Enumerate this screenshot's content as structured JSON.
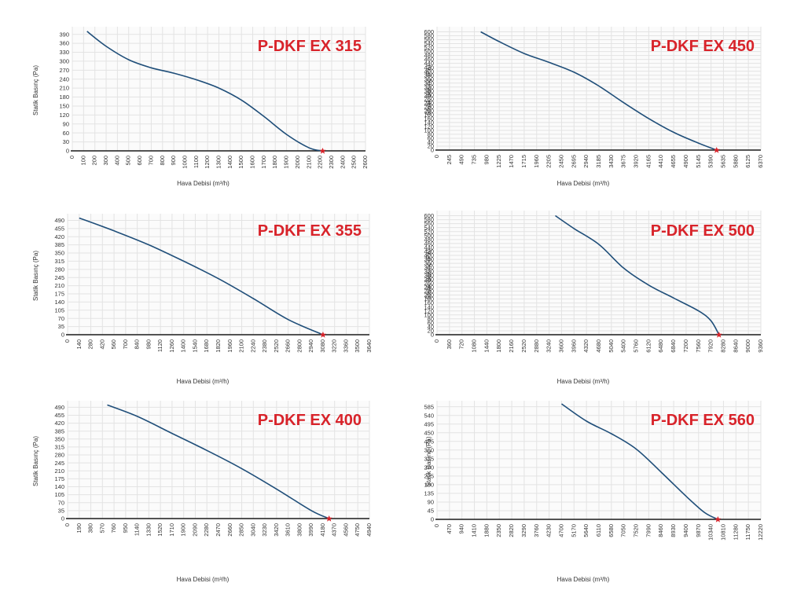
{
  "colors": {
    "curve": "#1f4e79",
    "baseline": "#1b1b1b",
    "marker": "#d8232a",
    "title": "#d8232a"
  },
  "chart_data": [
    {
      "type": "line",
      "title": "P-DKF EX 315",
      "xlabel": "Hava Debisi (m³/h)",
      "ylabel": "Statik Basınç (Pa)",
      "x_ticks": [
        0,
        100,
        200,
        300,
        400,
        500,
        600,
        700,
        800,
        900,
        1000,
        1100,
        1200,
        1300,
        1400,
        1500,
        1600,
        1700,
        1800,
        1900,
        2000,
        2100,
        2200,
        2300,
        2400,
        2500,
        2600
      ],
      "y_ticks": [
        0,
        30,
        60,
        90,
        120,
        150,
        180,
        210,
        240,
        270,
        300,
        330,
        360,
        390
      ],
      "xlim": [
        0,
        2600
      ],
      "ylim": [
        0,
        405
      ],
      "grid": true,
      "series": [
        {
          "x": [
            130,
            300,
            500,
            700,
            900,
            1100,
            1300,
            1500,
            1700,
            1900,
            2100,
            2220
          ],
          "y": [
            400,
            350,
            305,
            278,
            260,
            238,
            210,
            170,
            115,
            55,
            10,
            0
          ]
        }
      ],
      "marker": {
        "x": 2220,
        "y": 0
      }
    },
    {
      "type": "line",
      "title": "P-DKF EX 450",
      "xlabel": "Hava Debisi (m³/h)",
      "ylabel": "Statik Basınç (Pa)",
      "x_ticks": [
        0,
        245,
        490,
        735,
        980,
        1225,
        1470,
        1715,
        1960,
        2205,
        2450,
        2695,
        2940,
        3185,
        3430,
        3675,
        3920,
        4165,
        4410,
        4655,
        4900,
        5145,
        5390,
        5635,
        5880,
        6125,
        6370
      ],
      "y_ticks": [
        0,
        20,
        40,
        60,
        80,
        100,
        120,
        140,
        160,
        180,
        200,
        220,
        240,
        260,
        280,
        300,
        320,
        340,
        360,
        380,
        400,
        420,
        440,
        460,
        480,
        500,
        520,
        540,
        560,
        580,
        600
      ],
      "xlim": [
        0,
        6370
      ],
      "ylim": [
        0,
        610
      ],
      "grid": true,
      "series": [
        {
          "x": [
            860,
            1225,
            1715,
            2205,
            2695,
            3185,
            3675,
            4165,
            4655,
            5145,
            5500
          ],
          "y": [
            600,
            550,
            490,
            445,
            395,
            325,
            240,
            160,
            90,
            35,
            0
          ]
        }
      ],
      "marker": {
        "x": 5500,
        "y": 0
      }
    },
    {
      "type": "line",
      "title": "P-DKF EX 355",
      "xlabel": "Hava Debisi (m³/h)",
      "ylabel": "Statik Basınç (Pa)",
      "x_ticks": [
        0,
        140,
        280,
        420,
        560,
        700,
        840,
        980,
        1120,
        1260,
        1400,
        1540,
        1680,
        1820,
        1960,
        2100,
        2240,
        2380,
        2520,
        2660,
        2800,
        2940,
        3080,
        3220,
        3360,
        3500,
        3640
      ],
      "y_ticks": [
        0,
        35,
        70,
        105,
        140,
        175,
        210,
        245,
        280,
        315,
        350,
        385,
        420,
        455,
        490
      ],
      "xlim": [
        0,
        3640
      ],
      "ylim": [
        0,
        505
      ],
      "grid": true,
      "series": [
        {
          "x": [
            140,
            560,
            980,
            1400,
            1820,
            2240,
            2660,
            3080
          ],
          "y": [
            500,
            445,
            385,
            315,
            240,
            155,
            65,
            0
          ]
        }
      ],
      "marker": {
        "x": 3080,
        "y": 0
      }
    },
    {
      "type": "line",
      "title": "P-DKF EX 500",
      "xlabel": "Hava Debisi (m³/h)",
      "ylabel": "Statik Basınç (Pa)",
      "x_ticks": [
        0,
        360,
        720,
        1080,
        1440,
        1800,
        2160,
        2520,
        2880,
        3240,
        3600,
        3960,
        4320,
        4680,
        5040,
        5400,
        5760,
        6120,
        6480,
        6840,
        7200,
        7560,
        7920,
        8280,
        8640,
        9000,
        9360
      ],
      "y_ticks": [
        0,
        20,
        40,
        60,
        80,
        100,
        120,
        140,
        160,
        180,
        200,
        220,
        240,
        260,
        280,
        300,
        320,
        340,
        360,
        380,
        400,
        420,
        440,
        460,
        480,
        500,
        520,
        540,
        560,
        580,
        600
      ],
      "xlim": [
        0,
        9360
      ],
      "ylim": [
        0,
        610
      ],
      "grid": true,
      "series": [
        {
          "x": [
            3420,
            3960,
            4680,
            5400,
            6120,
            6840,
            7560,
            7920,
            8150
          ],
          "y": [
            600,
            535,
            455,
            335,
            250,
            185,
            120,
            70,
            0
          ]
        }
      ],
      "marker": {
        "x": 8150,
        "y": 0
      }
    },
    {
      "type": "line",
      "title": "P-DKF EX 400",
      "xlabel": "Hava Debisi (m³/h)",
      "ylabel": "Statik Basınç (Pa)",
      "x_ticks": [
        0,
        190,
        380,
        570,
        760,
        950,
        1140,
        1330,
        1520,
        1710,
        1900,
        2090,
        2280,
        2470,
        2660,
        2850,
        3040,
        3230,
        3420,
        3610,
        3800,
        3990,
        4180,
        4370,
        4560,
        4750,
        4940
      ],
      "y_ticks": [
        0,
        35,
        70,
        105,
        140,
        175,
        210,
        245,
        280,
        315,
        350,
        385,
        420,
        455,
        490
      ],
      "xlim": [
        0,
        4940
      ],
      "ylim": [
        0,
        505
      ],
      "grid": true,
      "series": [
        {
          "x": [
            650,
            1140,
            1710,
            2280,
            2850,
            3420,
            3990,
            4280
          ],
          "y": [
            500,
            450,
            375,
            300,
            220,
            130,
            35,
            0
          ]
        }
      ],
      "marker": {
        "x": 4280,
        "y": 0
      }
    },
    {
      "type": "line",
      "title": "P-DKF EX 560",
      "xlabel": "Hava Debisi (m³/h)",
      "ylabel": "Statik Basınç (Pa)",
      "x_ticks": [
        0,
        470,
        940,
        1410,
        1880,
        2350,
        2820,
        3290,
        3760,
        4230,
        4700,
        5170,
        5640,
        6110,
        6580,
        7050,
        7520,
        7990,
        8460,
        8930,
        9400,
        9870,
        10340,
        10810,
        11280,
        11750,
        12220
      ],
      "y_ticks": [
        0,
        45,
        90,
        135,
        180,
        225,
        270,
        315,
        360,
        405,
        450,
        495,
        540,
        585
      ],
      "xlim": [
        0,
        12220
      ],
      "ylim": [
        0,
        600
      ],
      "grid": true,
      "series": [
        {
          "x": [
            4700,
            5640,
            6580,
            7520,
            8460,
            9400,
            10100,
            10600
          ],
          "y": [
            600,
            510,
            445,
            365,
            245,
            120,
            35,
            0
          ]
        }
      ],
      "marker": {
        "x": 10600,
        "y": 0
      }
    }
  ]
}
